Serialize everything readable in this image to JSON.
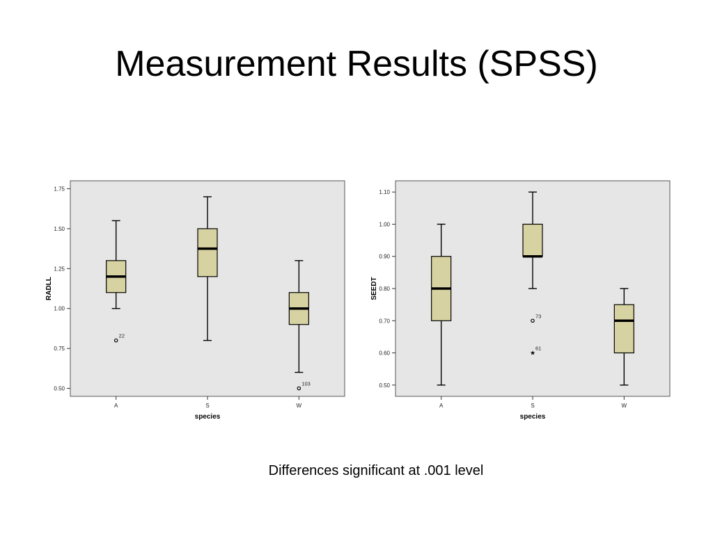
{
  "slide": {
    "title": "Measurement Results (SPSS)",
    "footnote": "Differences significant at .001 level"
  },
  "colors": {
    "plot_bg": "#e6e6e6",
    "box_fill": "#d7d2a1",
    "stroke": "#000000"
  },
  "chart_data": [
    {
      "type": "boxplot",
      "xlabel": "species",
      "ylabel": "RADLL",
      "categories": [
        "A",
        "S",
        "W"
      ],
      "ylim": [
        0.45,
        1.8
      ],
      "yticks": [
        0.5,
        0.75,
        1.0,
        1.25,
        1.5,
        1.75
      ],
      "ytick_labels": [
        "0.50",
        "0.75",
        "1.00",
        "1.25",
        "1.50",
        "1.75"
      ],
      "grid": false,
      "boxes": [
        {
          "category": "A",
          "whisker_low": 1.0,
          "q1": 1.1,
          "median": 1.2,
          "q3": 1.3,
          "whisker_high": 1.55,
          "outliers": [
            {
              "value": 0.8,
              "label": "22",
              "marker": "circle"
            }
          ]
        },
        {
          "category": "S",
          "whisker_low": 0.8,
          "q1": 1.2,
          "median": 1.375,
          "q3": 1.5,
          "whisker_high": 1.7,
          "outliers": []
        },
        {
          "category": "W",
          "whisker_low": 0.6,
          "q1": 0.9,
          "median": 1.0,
          "q3": 1.1,
          "whisker_high": 1.3,
          "outliers": [
            {
              "value": 0.5,
              "label": "103",
              "marker": "circle"
            }
          ]
        }
      ]
    },
    {
      "type": "boxplot",
      "xlabel": "species",
      "ylabel": "SEEDT",
      "categories": [
        "A",
        "S",
        "W"
      ],
      "ylim": [
        0.465,
        1.135
      ],
      "yticks": [
        0.5,
        0.6,
        0.7,
        0.8,
        0.9,
        1.0,
        1.1
      ],
      "ytick_labels": [
        "0.50",
        "0.60",
        "0.70",
        "0.80",
        "0.90",
        "1.00",
        "1.10"
      ],
      "grid": false,
      "boxes": [
        {
          "category": "A",
          "whisker_low": 0.5,
          "q1": 0.7,
          "median": 0.8,
          "q3": 0.9,
          "whisker_high": 1.0,
          "outliers": []
        },
        {
          "category": "S",
          "whisker_low": 0.8,
          "q1": 0.9,
          "median": 0.9,
          "q3": 1.0,
          "whisker_high": 1.1,
          "outliers": [
            {
              "value": 0.7,
              "label": "73",
              "marker": "circle"
            },
            {
              "value": 0.6,
              "label": "61",
              "marker": "star"
            }
          ]
        },
        {
          "category": "W",
          "whisker_low": 0.5,
          "q1": 0.6,
          "median": 0.7,
          "q3": 0.75,
          "whisker_high": 0.8,
          "outliers": []
        }
      ]
    }
  ]
}
